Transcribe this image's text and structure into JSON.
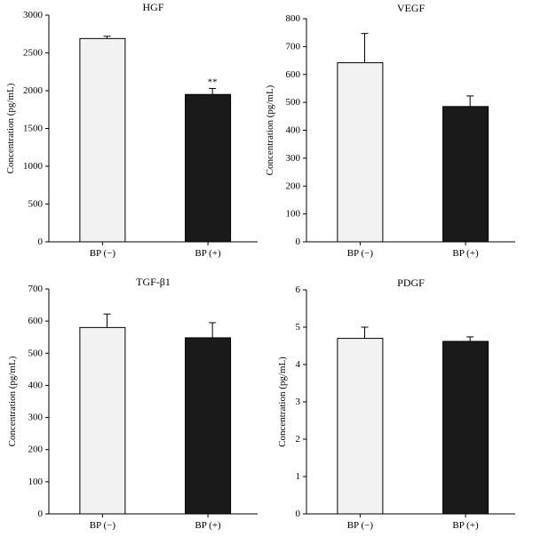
{
  "colors": {
    "bp_minus_fill": "#f2f2f2",
    "bp_plus_fill": "#1a1a1a",
    "stroke": "#000000"
  },
  "chart_data": [
    {
      "type": "bar",
      "title": "HGF",
      "ylabel": "Concentration (pg/mL)",
      "xlabel": "",
      "categories": [
        "BP (−)",
        "BP (+)"
      ],
      "values": [
        2690,
        1950
      ],
      "errors": [
        30,
        80
      ],
      "annotations": [
        "",
        "**"
      ],
      "ylim": [
        0,
        3000
      ],
      "yticks": [
        "0",
        "500",
        "1000",
        "1500",
        "2000",
        "2500",
        "3000"
      ],
      "grid": false
    },
    {
      "type": "bar",
      "title": "VEGF",
      "ylabel": "Concentration (pg/mL)",
      "xlabel": "",
      "categories": [
        "BP (−)",
        "BP (+)"
      ],
      "values": [
        642,
        485
      ],
      "errors": [
        105,
        38
      ],
      "annotations": [
        "",
        ""
      ],
      "ylim": [
        0,
        800
      ],
      "yticks": [
        "0",
        "100",
        "200",
        "300",
        "400",
        "500",
        "600",
        "700",
        "800"
      ],
      "grid": false
    },
    {
      "type": "bar",
      "title": "TGF-β1",
      "ylabel": "Concentration (pg/mL)",
      "xlabel": "",
      "categories": [
        "BP (−)",
        "BP (+)"
      ],
      "values": [
        580,
        548
      ],
      "errors": [
        42,
        47
      ],
      "annotations": [
        "",
        ""
      ],
      "ylim": [
        0,
        700
      ],
      "yticks": [
        "0",
        "100",
        "200",
        "300",
        "400",
        "500",
        "600",
        "700"
      ],
      "grid": false
    },
    {
      "type": "bar",
      "title": "PDGF",
      "ylabel": "Concentration (pg/mL)",
      "xlabel": "",
      "categories": [
        "BP (−)",
        "BP (+)"
      ],
      "values": [
        4.7,
        4.62
      ],
      "errors": [
        0.3,
        0.12
      ],
      "annotations": [
        "",
        ""
      ],
      "ylim": [
        0,
        6
      ],
      "yticks": [
        "0",
        "1",
        "2",
        "3",
        "4",
        "5",
        "6"
      ],
      "grid": false
    }
  ]
}
